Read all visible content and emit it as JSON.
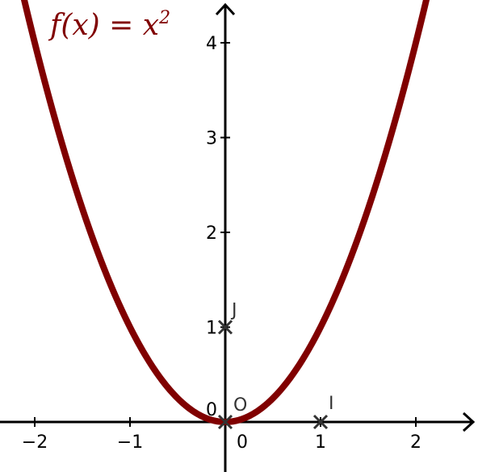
{
  "chart_data": {
    "type": "line",
    "title": "f(x)  =  x",
    "title_superscript": "2",
    "function": "x^2",
    "series": [
      {
        "color": "#800000",
        "x": [
          -2.2,
          -2,
          -1.8,
          -1.6,
          -1.4,
          -1.2,
          -1,
          -0.8,
          -0.6,
          -0.4,
          -0.2,
          0,
          0.2,
          0.4,
          0.6,
          0.8,
          1,
          1.2,
          1.4,
          1.6,
          1.8,
          2,
          2.2
        ],
        "y": [
          4.84,
          4,
          3.24,
          2.56,
          1.96,
          1.44,
          1,
          0.64,
          0.36,
          0.16,
          0.04,
          0,
          0.04,
          0.16,
          0.36,
          0.64,
          1,
          1.44,
          1.96,
          2.56,
          3.24,
          4,
          4.84
        ]
      }
    ],
    "points": [
      {
        "label": "O",
        "x": 0,
        "y": 0
      },
      {
        "label": "I",
        "x": 1,
        "y": 0
      },
      {
        "label": "J",
        "x": 0,
        "y": 1
      }
    ],
    "x_ticks": [
      "−2",
      "−1",
      "0",
      "1",
      "2"
    ],
    "x_tick_values": [
      -2,
      -1,
      0,
      1,
      2
    ],
    "y_ticks": [
      "0",
      "1",
      "2",
      "3",
      "4"
    ],
    "y_tick_values": [
      0,
      1,
      2,
      3,
      4
    ],
    "xlim": [
      -2.35,
      2.6
    ],
    "ylim": [
      -0.55,
      4.4
    ],
    "grid": false,
    "legend": "none"
  }
}
